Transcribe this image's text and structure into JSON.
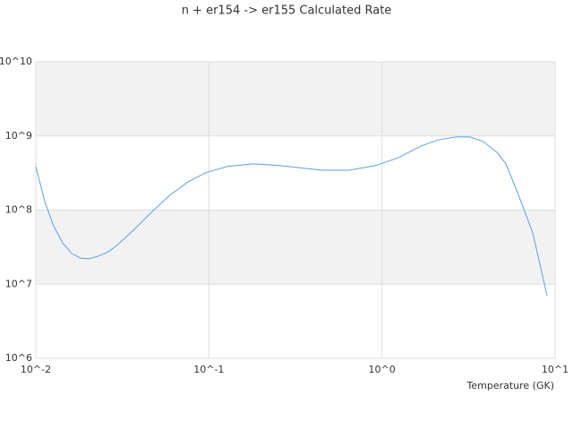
{
  "chart_data": {
    "type": "line",
    "title": "n + er154 -> er155 Calculated Rate",
    "x_label": "Temperature (GK)",
    "x_log": true,
    "y_log": true,
    "xlim": [
      0.01,
      10
    ],
    "ylim": [
      1000000,
      10000000000
    ],
    "xticks": [
      {
        "value": 0.01,
        "label": "10^-2"
      },
      {
        "value": 0.1,
        "label": "10^-1"
      },
      {
        "value": 1,
        "label": "10^0"
      },
      {
        "value": 10,
        "label": "10^1"
      }
    ],
    "yticks": [
      {
        "value": 1000000,
        "label": "10^6"
      },
      {
        "value": 10000000,
        "label": "10^7"
      },
      {
        "value": 100000000,
        "label": "10^8"
      },
      {
        "value": 1000000000,
        "label": "10^9"
      },
      {
        "value": 10000000000,
        "label": "10^10"
      }
    ],
    "band_color": "#f2f2f2",
    "x": [
      0.01,
      0.01127,
      0.01268,
      0.01429,
      0.0161,
      0.01816,
      0.0204,
      0.023,
      0.02594,
      0.02924,
      0.0371,
      0.0471,
      0.0597,
      0.0757,
      0.0962,
      0.1294,
      0.1807,
      0.2495,
      0.4519,
      0.647,
      0.9247,
      1.245,
      1.675,
      2.128,
      2.698,
      3.228,
      3.855,
      4.613,
      5.2,
      6.21,
      7.43,
      8.99
    ],
    "series": [
      {
        "color": "#5aa0e6",
        "values": [
          386000000,
          130000000,
          61000000,
          36000000,
          26000000,
          22500000,
          22000000,
          24000000,
          27000000,
          33000000,
          55000000,
          96000000,
          160000000,
          240000000,
          320000000,
          390000000,
          420000000,
          400000000,
          345000000,
          345000000,
          400000000,
          510000000,
          730000000,
          890000000,
          970000000,
          970000000,
          840000000,
          600000000,
          420000000,
          150000000,
          49000000,
          7000000
        ]
      }
    ]
  }
}
